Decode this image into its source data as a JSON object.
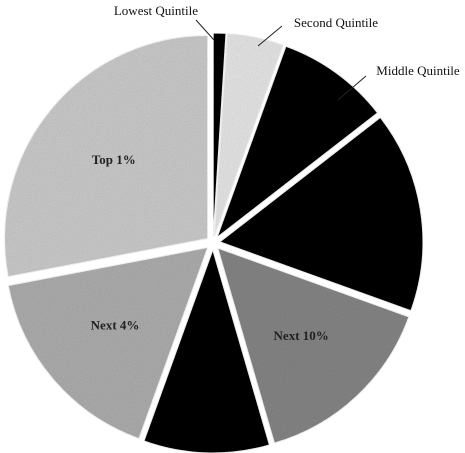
{
  "chart_data": {
    "type": "pie",
    "categories": [
      "Lowest Quintile",
      "Second Quintile",
      "Middle Quintile",
      null,
      "Next 10%",
      null,
      "Next 4%",
      "Top 1%"
    ],
    "values": [
      1,
      4.5,
      9,
      16,
      15,
      10,
      16.5,
      28
    ],
    "colors": [
      "#111111",
      "#eeeeee",
      "#111111",
      "#111111",
      "#8a8a8a",
      "#111111",
      "#b4b4b4",
      "#d2d2d2"
    ]
  }
}
